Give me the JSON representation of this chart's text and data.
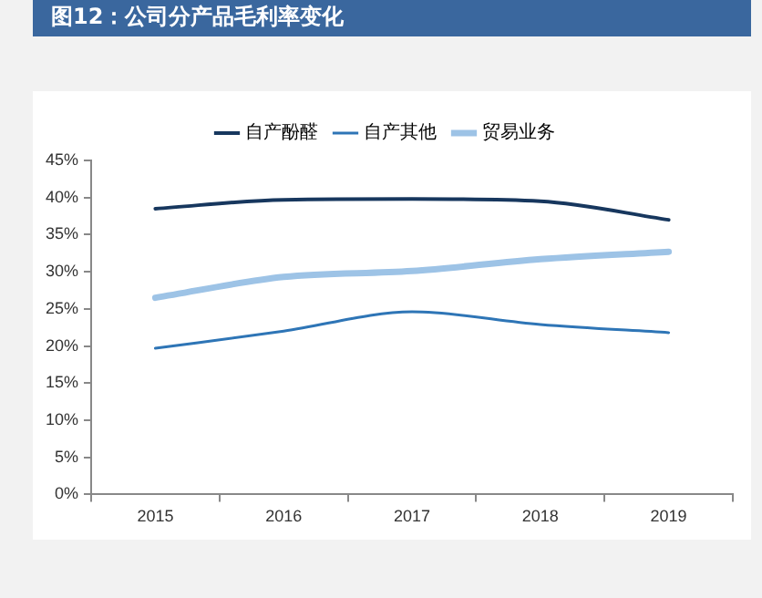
{
  "chart_data": {
    "type": "line",
    "title": "图12：公司分产品毛利率变化",
    "categories": [
      "2015",
      "2016",
      "2017",
      "2018",
      "2019"
    ],
    "series": [
      {
        "name": "自产酚醛",
        "color": "#17375e",
        "values": [
          38.5,
          39.7,
          39.8,
          39.5,
          37.0
        ]
      },
      {
        "name": "自产其他",
        "color": "#2e75b6",
        "values": [
          19.7,
          22.0,
          24.6,
          22.9,
          21.8
        ]
      },
      {
        "name": "贸易业务",
        "color": "#9dc3e6",
        "values": [
          26.5,
          29.3,
          30.1,
          31.7,
          32.7
        ]
      }
    ],
    "ylim": [
      0,
      45
    ],
    "yticks": [
      {
        "value": 0,
        "label": "0%"
      },
      {
        "value": 5,
        "label": "5%"
      },
      {
        "value": 10,
        "label": "10%"
      },
      {
        "value": 15,
        "label": "15%"
      },
      {
        "value": 20,
        "label": "20%"
      },
      {
        "value": 25,
        "label": "25%"
      },
      {
        "value": 30,
        "label": "30%"
      },
      {
        "value": 35,
        "label": "35%"
      },
      {
        "value": 40,
        "label": "40%"
      },
      {
        "value": 45,
        "label": "45%"
      }
    ],
    "grid": false,
    "legend": "top",
    "marker": "none",
    "line_style": "solid"
  }
}
